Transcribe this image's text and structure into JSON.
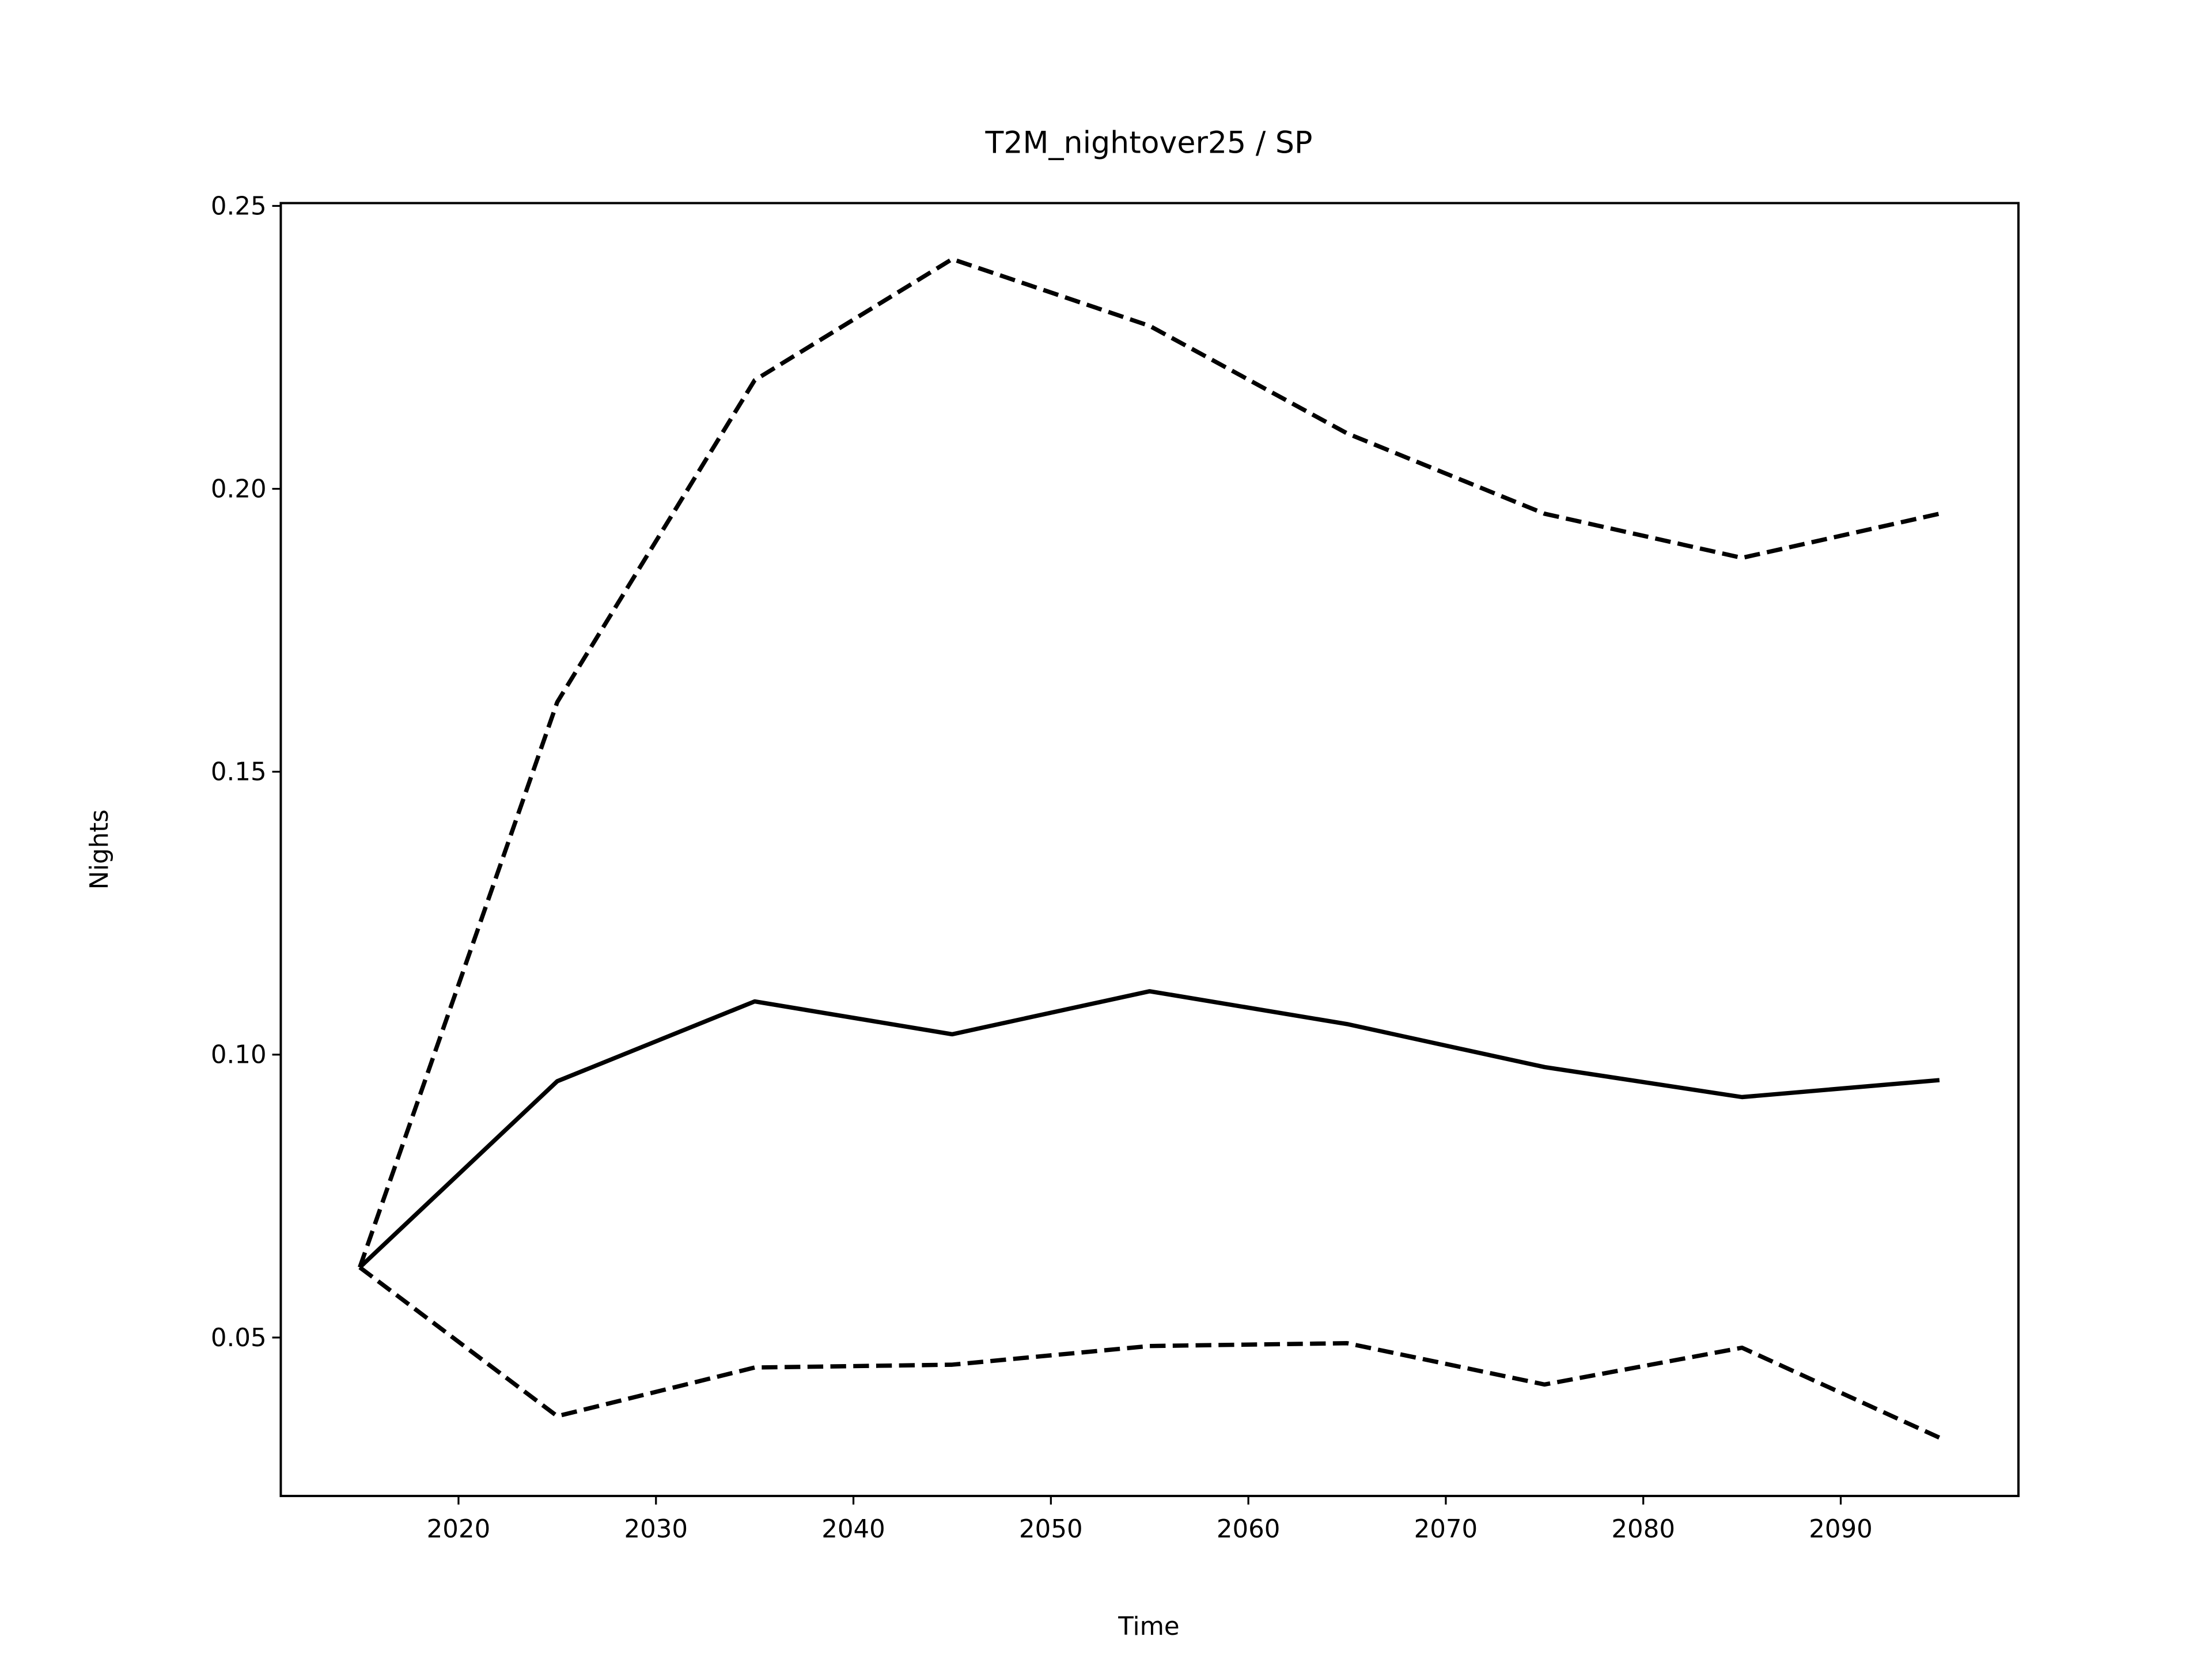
{
  "chart_data": {
    "type": "line",
    "title": "T2M_nightover25 / SP",
    "xlabel": "Time",
    "ylabel": "Nights",
    "x": [
      2015,
      2025,
      2035,
      2045,
      2055,
      2065,
      2075,
      2085,
      2095
    ],
    "series": [
      {
        "color": "#000000",
        "dash": "solid",
        "values": [
          0.0624,
          0.0953,
          0.1094,
          0.1036,
          0.1112,
          0.1054,
          0.0978,
          0.0925,
          0.0955
        ]
      },
      {
        "color": "#000000",
        "dash": "dashed",
        "values": [
          0.0624,
          0.1623,
          0.2192,
          0.2406,
          0.2288,
          0.2098,
          0.1956,
          0.1878,
          0.1956
        ]
      },
      {
        "color": "#000000",
        "dash": "dashed",
        "values": [
          0.0624,
          0.0361,
          0.0447,
          0.0452,
          0.0485,
          0.049,
          0.0417,
          0.0482,
          0.0323
        ]
      }
    ],
    "xlim": [
      2011,
      2099
    ],
    "ylim": [
      0.022,
      0.2505
    ],
    "xticks": [
      2020,
      2030,
      2040,
      2050,
      2060,
      2070,
      2080,
      2090
    ],
    "yticks": [
      0.05,
      {
        "value": 0.1,
        "label": "0.10"
      },
      0.15,
      {
        "value": 0.2,
        "label": "0.20"
      },
      0.25
    ],
    "grid": false
  }
}
